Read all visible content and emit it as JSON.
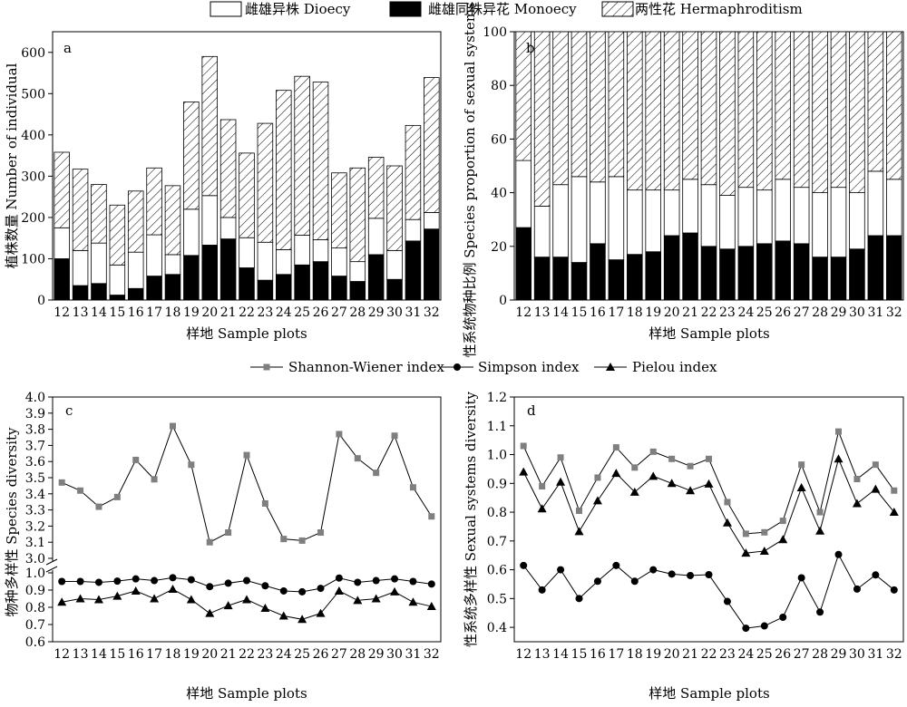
{
  "legend_top": [
    {
      "label": "雌雄异株 Dioecy",
      "fill": "white"
    },
    {
      "label": "雌雄同株异花 Monoecy",
      "fill": "black"
    },
    {
      "label": "两性花 Hermaphroditism",
      "fill": "hatch"
    }
  ],
  "legend_bottom": [
    {
      "label": "Shannon-Wiener index",
      "marker": "square",
      "color": "#7f7f7f"
    },
    {
      "label": "Simpson index",
      "marker": "circle",
      "color": "#000000"
    },
    {
      "label": "Pielou index",
      "marker": "triangle",
      "color": "#000000"
    }
  ],
  "colors": {
    "monoecy": "#000000",
    "dioecy": "#ffffff",
    "shannon": "#7f7f7f",
    "line": "#000000"
  },
  "chart_data": [
    {
      "panel": "a",
      "type": "bar",
      "stacked": true,
      "categories": [
        "12",
        "13",
        "14",
        "15",
        "16",
        "17",
        "18",
        "19",
        "20",
        "21",
        "22",
        "23",
        "24",
        "25",
        "26",
        "27",
        "28",
        "29",
        "30",
        "31",
        "32"
      ],
      "series": [
        {
          "name": "雌雄同株异花 Monoecy",
          "values": [
            100,
            35,
            40,
            12,
            28,
            58,
            62,
            108,
            133,
            148,
            78,
            48,
            62,
            85,
            93,
            58,
            45,
            110,
            50,
            143,
            172
          ]
        },
        {
          "name": "雌雄异株 Dioecy",
          "values": [
            75,
            85,
            98,
            73,
            88,
            100,
            48,
            112,
            120,
            52,
            73,
            92,
            60,
            72,
            53,
            68,
            48,
            88,
            70,
            52,
            40
          ]
        },
        {
          "name": "两性花 Hermaphroditism",
          "values": [
            183,
            197,
            142,
            145,
            148,
            162,
            167,
            260,
            337,
            237,
            205,
            288,
            386,
            385,
            382,
            182,
            227,
            148,
            205,
            228,
            327
          ]
        }
      ],
      "ylabel": "植株数量 Number of individual",
      "xlabel": "样地 Sample plots",
      "ylim": [
        0,
        650
      ],
      "yticks": [
        0,
        100,
        200,
        300,
        400,
        500,
        600
      ]
    },
    {
      "panel": "b",
      "type": "bar",
      "stacked": true,
      "categories": [
        "12",
        "13",
        "14",
        "15",
        "16",
        "17",
        "18",
        "19",
        "20",
        "21",
        "22",
        "23",
        "24",
        "25",
        "26",
        "27",
        "28",
        "29",
        "30",
        "31",
        "32"
      ],
      "series": [
        {
          "name": "雌雄同株异花 Monoecy",
          "values": [
            27,
            16,
            16,
            14,
            21,
            15,
            17,
            18,
            24,
            25,
            20,
            19,
            20,
            21,
            22,
            21,
            16,
            16,
            19,
            24,
            24
          ]
        },
        {
          "name": "雌雄异株 Dioecy",
          "values": [
            25,
            19,
            27,
            32,
            23,
            31,
            24,
            23,
            17,
            20,
            23,
            20,
            22,
            20,
            23,
            21,
            24,
            26,
            21,
            24,
            21
          ]
        },
        {
          "name": "两性花 Hermaphroditism",
          "values": [
            48,
            65,
            57,
            54,
            56,
            54,
            59,
            59,
            59,
            55,
            57,
            61,
            58,
            59,
            55,
            58,
            60,
            58,
            60,
            52,
            55
          ]
        }
      ],
      "ylabel": "性系统物种比例 Species proportion of sexual systems (%)",
      "xlabel": "样地 Sample plots",
      "ylim": [
        0,
        100
      ],
      "yticks": [
        0,
        20,
        40,
        60,
        80,
        100
      ]
    },
    {
      "panel": "c",
      "type": "line",
      "x": [
        "12",
        "13",
        "14",
        "15",
        "16",
        "17",
        "18",
        "19",
        "20",
        "21",
        "22",
        "23",
        "24",
        "25",
        "26",
        "27",
        "28",
        "29",
        "30",
        "31",
        "32"
      ],
      "series": [
        {
          "name": "Shannon-Wiener index",
          "values": [
            3.47,
            3.42,
            3.32,
            3.38,
            3.61,
            3.49,
            3.82,
            3.58,
            3.1,
            3.16,
            3.64,
            3.34,
            3.12,
            3.11,
            3.16,
            3.77,
            3.62,
            3.53,
            3.76,
            3.44,
            3.26
          ]
        },
        {
          "name": "Simpson index",
          "values": [
            0.95,
            0.95,
            0.945,
            0.952,
            0.965,
            0.955,
            0.972,
            0.96,
            0.92,
            0.94,
            0.955,
            0.925,
            0.895,
            0.89,
            0.91,
            0.97,
            0.945,
            0.955,
            0.965,
            0.95,
            0.935
          ]
        },
        {
          "name": "Pielou index",
          "values": [
            0.83,
            0.85,
            0.845,
            0.865,
            0.895,
            0.85,
            0.905,
            0.845,
            0.765,
            0.81,
            0.845,
            0.795,
            0.75,
            0.73,
            0.765,
            0.895,
            0.84,
            0.85,
            0.89,
            0.83,
            0.805
          ]
        }
      ],
      "ylabel": "物种多样性 Species diversity",
      "xlabel": "样地 Sample plots",
      "yticks_upper": [
        "3.0",
        "3.1",
        "3.2",
        "3.3",
        "3.4",
        "3.5",
        "3.6",
        "3.7",
        "3.8",
        "3.9",
        "4.0"
      ],
      "yticks_lower": [
        "0.6",
        "0.7",
        "0.8",
        "0.9",
        "1.0"
      ],
      "ylim_upper": [
        3.0,
        4.0
      ],
      "ylim_lower": [
        0.6,
        1.0
      ],
      "broken_axis": true
    },
    {
      "panel": "d",
      "type": "line",
      "x": [
        "12",
        "13",
        "14",
        "15",
        "16",
        "17",
        "18",
        "19",
        "20",
        "21",
        "22",
        "23",
        "24",
        "25",
        "26",
        "27",
        "28",
        "29",
        "30",
        "31",
        "32"
      ],
      "series": [
        {
          "name": "Shannon-Wiener index",
          "values": [
            1.03,
            0.89,
            0.99,
            0.805,
            0.92,
            1.025,
            0.955,
            1.01,
            0.985,
            0.96,
            0.985,
            0.835,
            0.725,
            0.73,
            0.77,
            0.965,
            0.8,
            1.08,
            0.915,
            0.965,
            0.875
          ]
        },
        {
          "name": "Simpson index",
          "values": [
            0.615,
            0.53,
            0.6,
            0.5,
            0.56,
            0.615,
            0.56,
            0.6,
            0.585,
            0.58,
            0.583,
            0.49,
            0.397,
            0.405,
            0.435,
            0.572,
            0.453,
            0.653,
            0.533,
            0.582,
            0.53
          ]
        },
        {
          "name": "Pielou index",
          "values": [
            0.94,
            0.812,
            0.905,
            0.733,
            0.84,
            0.935,
            0.87,
            0.925,
            0.9,
            0.875,
            0.898,
            0.763,
            0.658,
            0.665,
            0.705,
            0.885,
            0.735,
            0.985,
            0.83,
            0.88,
            0.8
          ]
        }
      ],
      "ylabel": "性系统多样性 Sexual systems diversity",
      "xlabel": "样地 Sample plots",
      "ylim": [
        0.35,
        1.2
      ],
      "yticks": [
        "0.4",
        "0.5",
        "0.6",
        "0.7",
        "0.8",
        "0.9",
        "1.0",
        "1.1",
        "1.2"
      ]
    }
  ]
}
